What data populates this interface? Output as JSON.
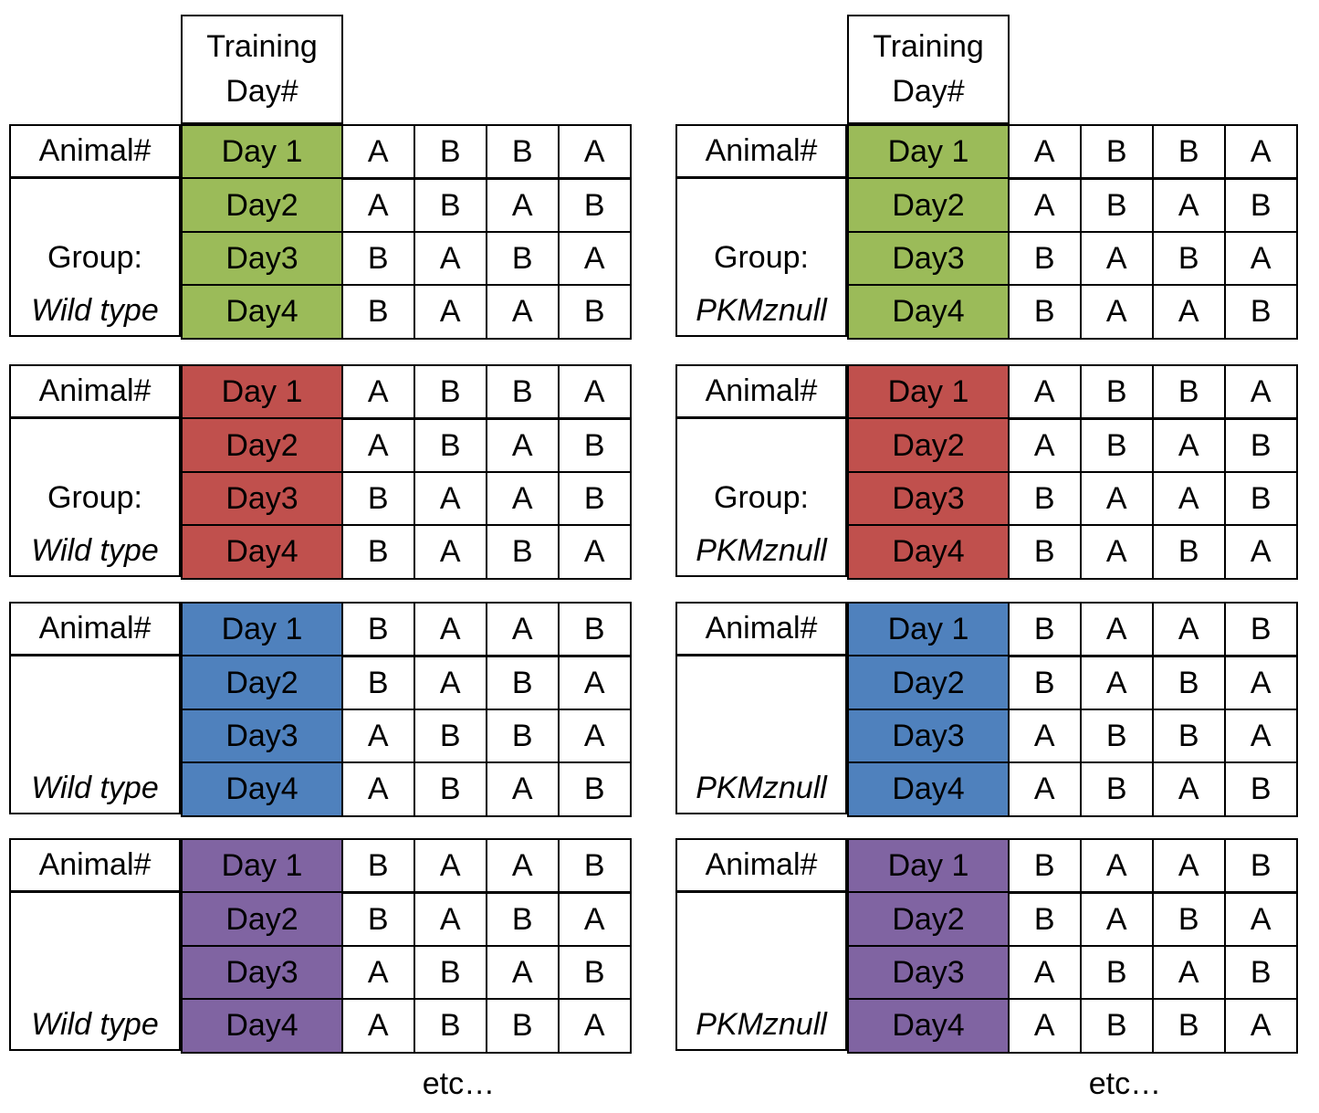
{
  "header_label": [
    "Training",
    "Day#"
  ],
  "animal_label": "Animal#",
  "group_label": "Group:",
  "etc_label": "etc…",
  "colors": {
    "green": "#9bbb59",
    "red": "#c0504d",
    "blue": "#4f81bd",
    "purple": "#8064a2"
  },
  "panels": [
    {
      "genotype": "Wild type",
      "blocks": [
        {
          "color": "green",
          "show_group": true,
          "days": [
            "Day 1",
            "Day2",
            "Day3",
            "Day4"
          ],
          "rows": [
            [
              "A",
              "B",
              "B",
              "A"
            ],
            [
              "A",
              "B",
              "A",
              "B"
            ],
            [
              "B",
              "A",
              "B",
              "A"
            ],
            [
              "B",
              "A",
              "A",
              "B"
            ]
          ]
        },
        {
          "color": "red",
          "show_group": true,
          "days": [
            "Day 1",
            "Day2",
            "Day3",
            "Day4"
          ],
          "rows": [
            [
              "A",
              "B",
              "B",
              "A"
            ],
            [
              "A",
              "B",
              "A",
              "B"
            ],
            [
              "B",
              "A",
              "A",
              "B"
            ],
            [
              "B",
              "A",
              "B",
              "A"
            ]
          ]
        },
        {
          "color": "blue",
          "show_group": false,
          "days": [
            "Day 1",
            "Day2",
            "Day3",
            "Day4"
          ],
          "rows": [
            [
              "B",
              "A",
              "A",
              "B"
            ],
            [
              "B",
              "A",
              "B",
              "A"
            ],
            [
              "A",
              "B",
              "B",
              "A"
            ],
            [
              "A",
              "B",
              "A",
              "B"
            ]
          ]
        },
        {
          "color": "purple",
          "show_group": false,
          "days": [
            "Day 1",
            "Day2",
            "Day3",
            "Day4"
          ],
          "rows": [
            [
              "B",
              "A",
              "A",
              "B"
            ],
            [
              "B",
              "A",
              "B",
              "A"
            ],
            [
              "A",
              "B",
              "A",
              "B"
            ],
            [
              "A",
              "B",
              "B",
              "A"
            ]
          ]
        }
      ]
    },
    {
      "genotype": "PKMznull",
      "blocks": [
        {
          "color": "green",
          "show_group": true,
          "days": [
            "Day 1",
            "Day2",
            "Day3",
            "Day4"
          ],
          "rows": [
            [
              "A",
              "B",
              "B",
              "A"
            ],
            [
              "A",
              "B",
              "A",
              "B"
            ],
            [
              "B",
              "A",
              "B",
              "A"
            ],
            [
              "B",
              "A",
              "A",
              "B"
            ]
          ]
        },
        {
          "color": "red",
          "show_group": true,
          "days": [
            "Day 1",
            "Day2",
            "Day3",
            "Day4"
          ],
          "rows": [
            [
              "A",
              "B",
              "B",
              "A"
            ],
            [
              "A",
              "B",
              "A",
              "B"
            ],
            [
              "B",
              "A",
              "A",
              "B"
            ],
            [
              "B",
              "A",
              "B",
              "A"
            ]
          ]
        },
        {
          "color": "blue",
          "show_group": false,
          "days": [
            "Day 1",
            "Day2",
            "Day3",
            "Day4"
          ],
          "rows": [
            [
              "B",
              "A",
              "A",
              "B"
            ],
            [
              "B",
              "A",
              "B",
              "A"
            ],
            [
              "A",
              "B",
              "B",
              "A"
            ],
            [
              "A",
              "B",
              "A",
              "B"
            ]
          ]
        },
        {
          "color": "purple",
          "show_group": false,
          "days": [
            "Day 1",
            "Day2",
            "Day3",
            "Day4"
          ],
          "rows": [
            [
              "B",
              "A",
              "A",
              "B"
            ],
            [
              "B",
              "A",
              "B",
              "A"
            ],
            [
              "A",
              "B",
              "A",
              "B"
            ],
            [
              "A",
              "B",
              "B",
              "A"
            ]
          ]
        }
      ]
    }
  ]
}
